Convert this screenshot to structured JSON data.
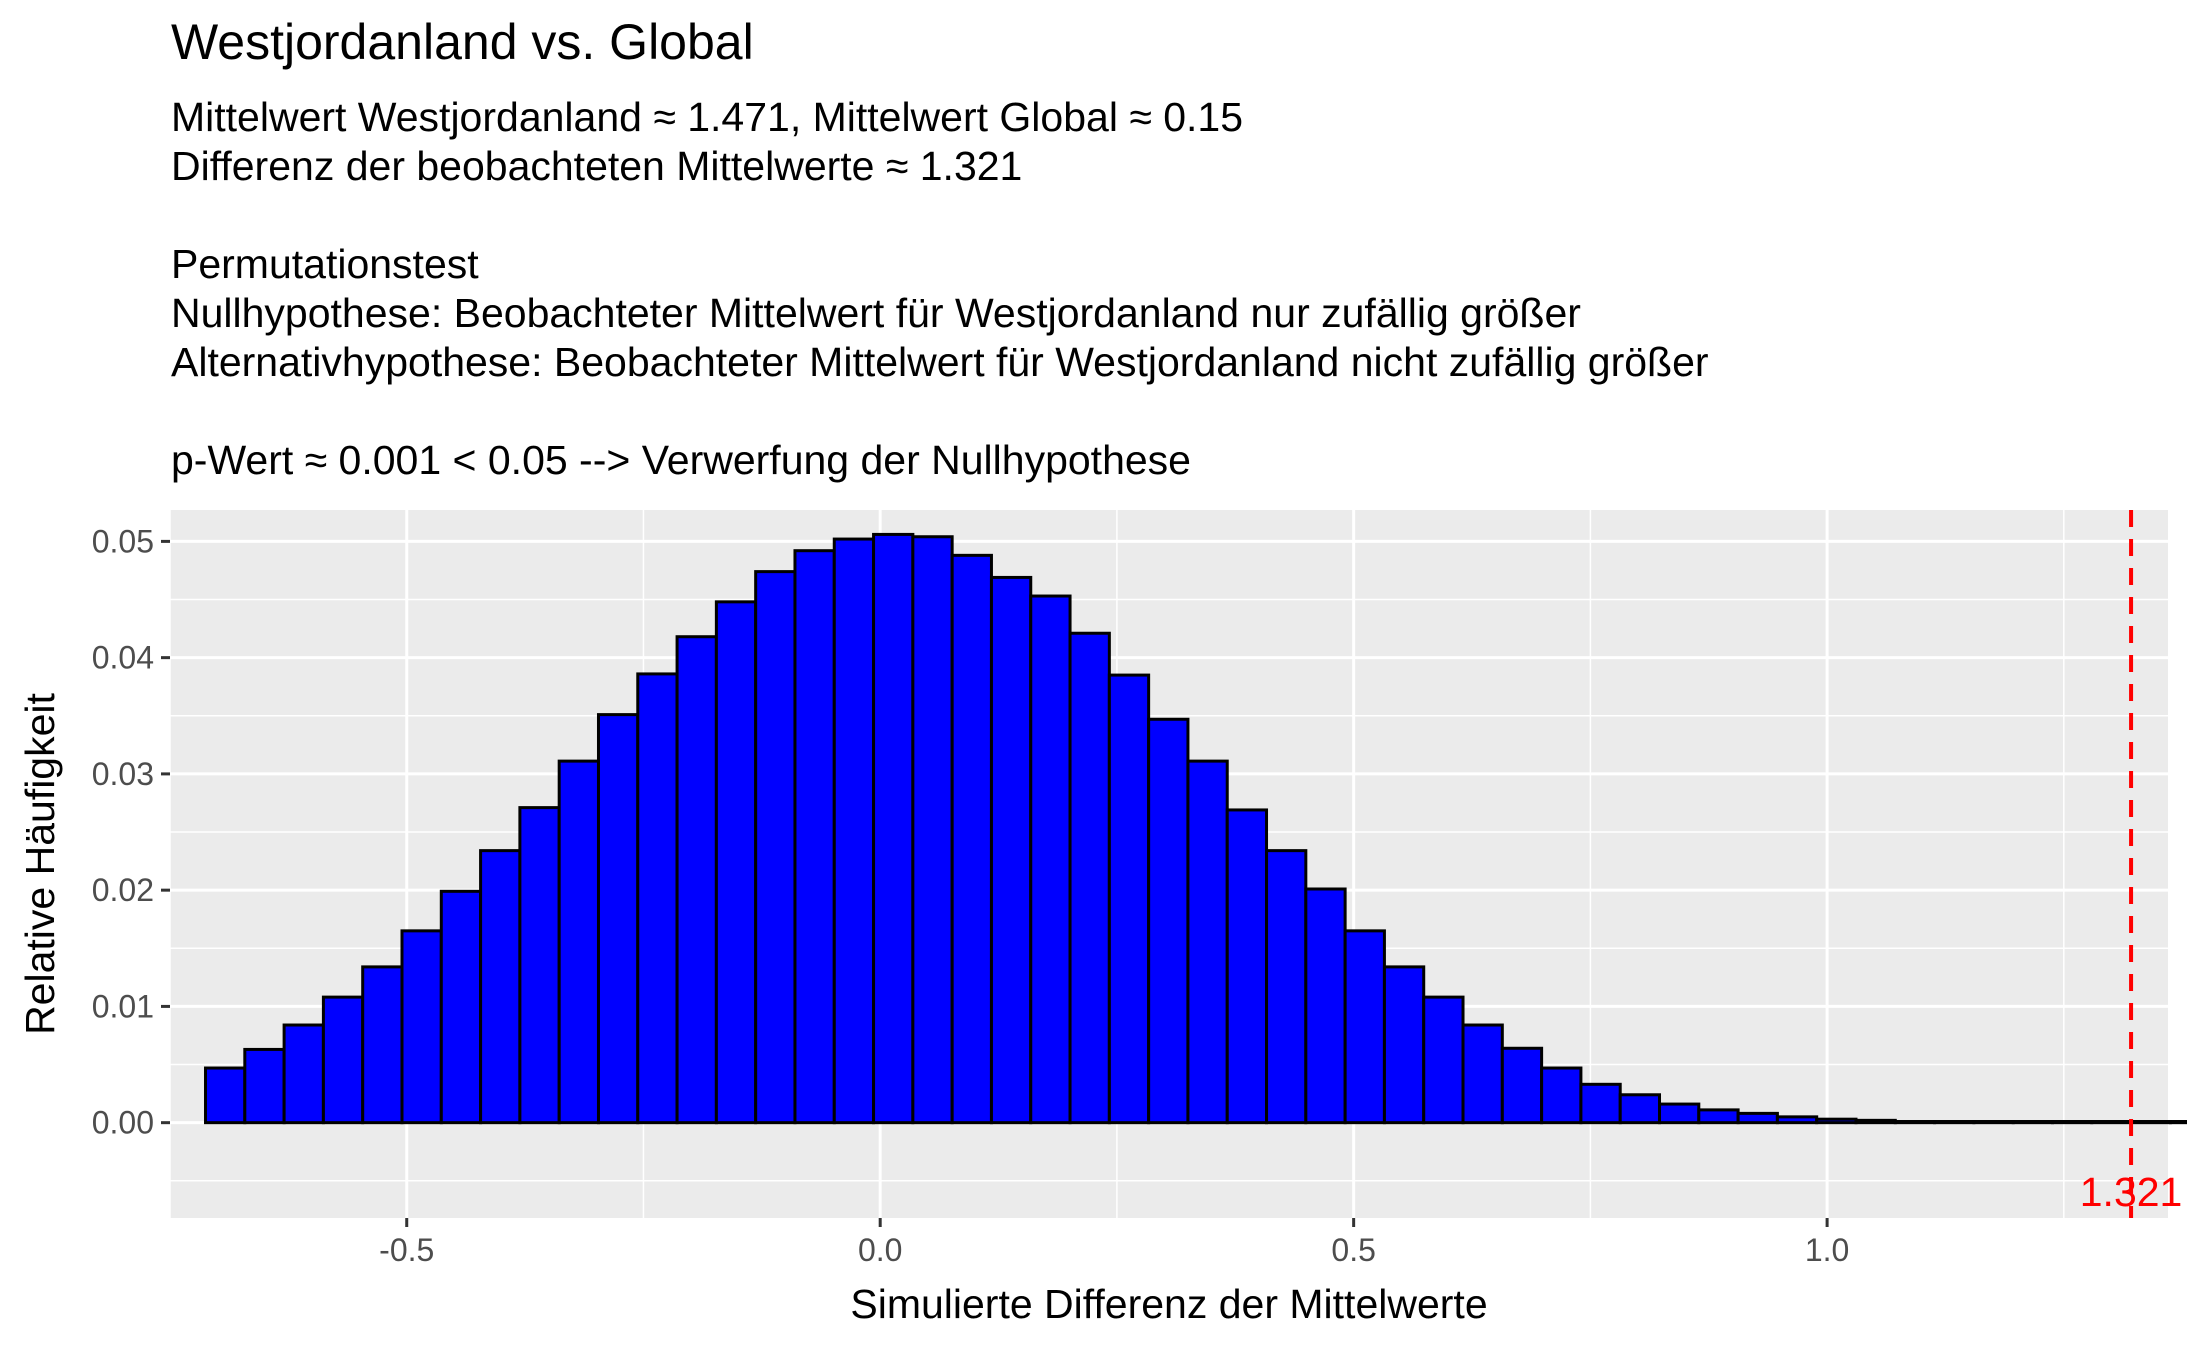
{
  "chart_data": {
    "type": "bar",
    "title": "Westjordanland vs. Global",
    "subtitle_lines": [
      "Mittelwert Westjordanland ≈ 1.471, Mittelwert Global ≈ 0.15",
      "Differenz der beobachteten Mittelwerte ≈ 1.321",
      "",
      "Permutationstest",
      "Nullhypothese: Beobachteter Mittelwert für Westjordanland nur zufällig größer",
      "Alternativhypothese: Beobachteter Mittelwert für Westjordanland nicht zufällig größer",
      "",
      "p-Wert ≈ 0.001 < 0.05 --> Verwerfung der Nullhypothese"
    ],
    "xlabel": "Simulierte Differenz der Mittelwerte",
    "ylabel": "Relative Häufigkeit",
    "xlim": [
      -0.75,
      1.36
    ],
    "ylim": [
      -0.0082,
      0.0527
    ],
    "x_ticks": [
      {
        "value": -0.5,
        "label": "-0.5"
      },
      {
        "value": 0.0,
        "label": "0.0"
      },
      {
        "value": 0.5,
        "label": "0.5"
      },
      {
        "value": 1.0,
        "label": "1.0"
      }
    ],
    "y_ticks": [
      {
        "value": 0.0,
        "label": "0.00"
      },
      {
        "value": 0.01,
        "label": "0.01"
      },
      {
        "value": 0.02,
        "label": "0.02"
      },
      {
        "value": 0.03,
        "label": "0.03"
      },
      {
        "value": 0.04,
        "label": "0.04"
      },
      {
        "value": 0.05,
        "label": "0.05"
      }
    ],
    "bin_start": -0.7125,
    "bin_width": 0.0415,
    "values": [
      0.0047,
      0.0063,
      0.0084,
      0.0108,
      0.0134,
      0.0165,
      0.0199,
      0.0234,
      0.0271,
      0.0311,
      0.0351,
      0.0386,
      0.0418,
      0.0448,
      0.0474,
      0.0492,
      0.0502,
      0.0506,
      0.0504,
      0.0488,
      0.0469,
      0.0453,
      0.0421,
      0.0385,
      0.0347,
      0.0311,
      0.0269,
      0.0234,
      0.0201,
      0.0165,
      0.0134,
      0.0108,
      0.0084,
      0.0064,
      0.0047,
      0.0033,
      0.0024,
      0.0016,
      0.0011,
      0.0008,
      0.0005,
      0.0003,
      0.0002,
      0.0001,
      0.0001,
      0.0001,
      0.0001,
      0.0001,
      0.0001,
      0.0001,
      0.0001,
      0.0001,
      0.0001
    ],
    "reference_line": {
      "value": 1.321,
      "label": "1.321",
      "color": "#ff0000",
      "style": "dashed"
    },
    "colors": {
      "bar_fill": "#0000ff",
      "bar_outline": "#000000",
      "panel_background": "#ebebeb",
      "grid": "#ffffff",
      "reference": "#ff0000"
    },
    "grid": true
  }
}
